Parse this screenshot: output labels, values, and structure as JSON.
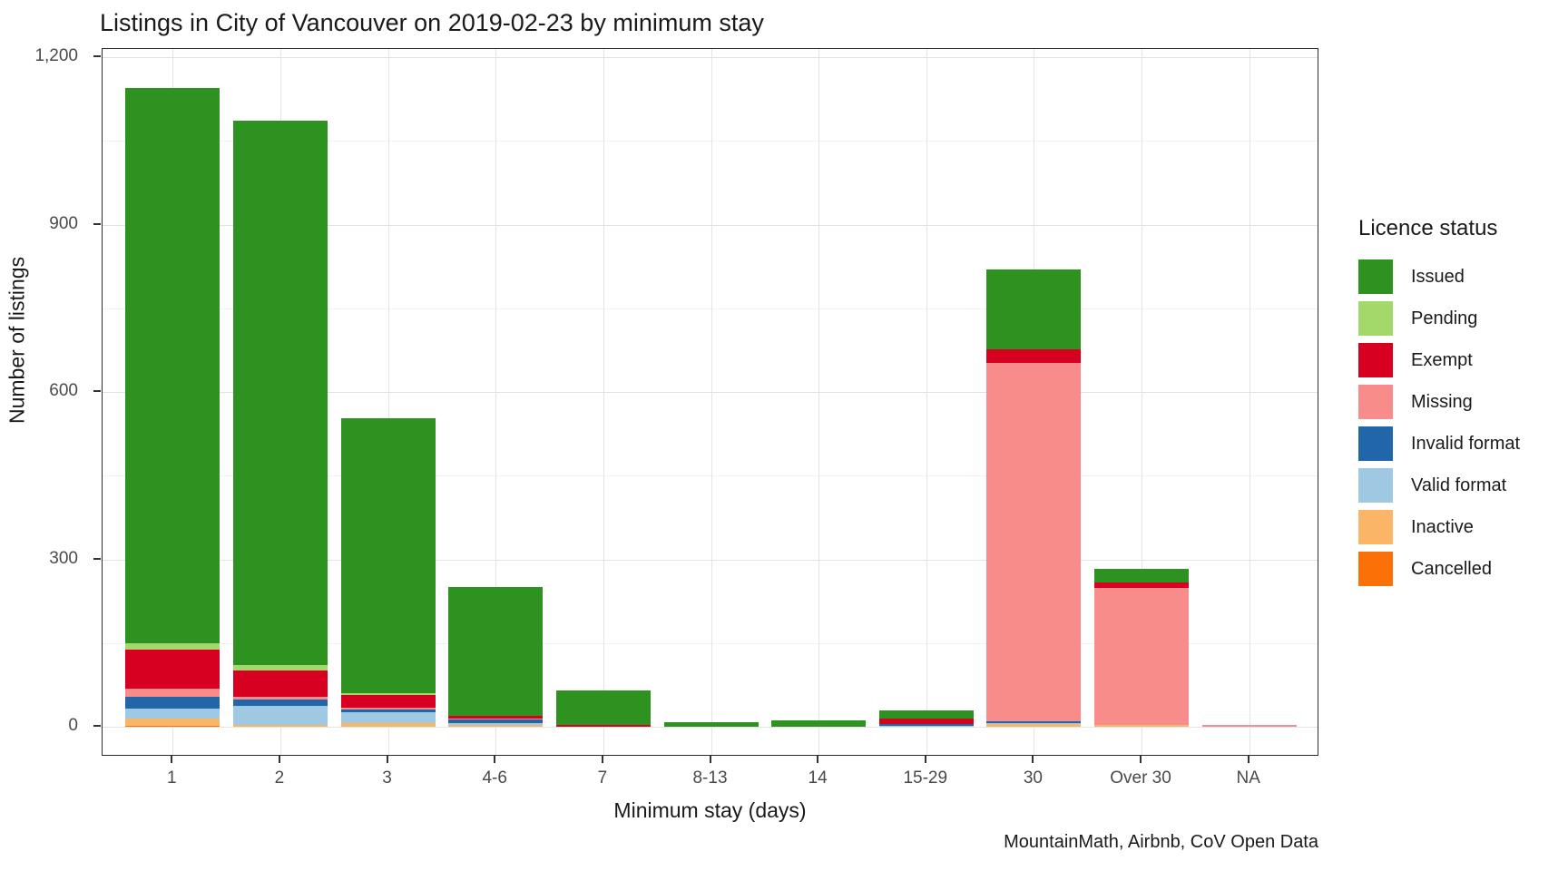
{
  "title": "Listings in City of Vancouver on 2019-02-23 by minimum stay",
  "caption": "MountainMath, Airbnb, CoV Open Data",
  "axes": {
    "x_title": "Minimum stay (days)",
    "y_title": "Number of listings",
    "y_ticks": [
      {
        "label": "0",
        "value": 0
      },
      {
        "label": "300",
        "value": 300
      },
      {
        "label": "600",
        "value": 600
      },
      {
        "label": "900",
        "value": 900
      },
      {
        "label": "1,200",
        "value": 1200
      }
    ],
    "y_minor_ticks": [
      150,
      450,
      750,
      1050
    ]
  },
  "legend": {
    "title": "Licence status",
    "items": [
      {
        "label": "Issued",
        "color": "#2e9220"
      },
      {
        "label": "Pending",
        "color": "#a3d86a"
      },
      {
        "label": "Exempt",
        "color": "#d80021"
      },
      {
        "label": "Missing",
        "color": "#f78c8b"
      },
      {
        "label": "Invalid format",
        "color": "#2066a8"
      },
      {
        "label": "Valid format",
        "color": "#9fc8e2"
      },
      {
        "label": "Inactive",
        "color": "#fab566"
      },
      {
        "label": "Cancelled",
        "color": "#fb7107"
      }
    ]
  },
  "chart_data": {
    "type": "bar",
    "stacked": true,
    "title": "Listings in City of Vancouver on 2019-02-23 by minimum stay",
    "xlabel": "Minimum stay (days)",
    "ylabel": "Number of listings",
    "ylim": [
      0,
      1215
    ],
    "grid": true,
    "legend_position": "right",
    "legend_title": "Licence status",
    "source": "MountainMath, Airbnb, CoV Open Data",
    "categories": [
      "1",
      "2",
      "3",
      "4-6",
      "7",
      "8-13",
      "14",
      "15-29",
      "30",
      "Over 30",
      "NA"
    ],
    "series": [
      {
        "name": "Cancelled",
        "color": "#fb7107",
        "values": [
          2,
          0,
          0,
          0,
          0,
          0,
          0,
          0,
          0,
          0,
          0
        ]
      },
      {
        "name": "Inactive",
        "color": "#fab566",
        "values": [
          13,
          3,
          7,
          3,
          0,
          0,
          0,
          0,
          5,
          3,
          0
        ]
      },
      {
        "name": "Valid format",
        "color": "#9fc8e2",
        "values": [
          18,
          34,
          19,
          4,
          0,
          0,
          0,
          2,
          2,
          0,
          0
        ]
      },
      {
        "name": "Invalid format",
        "color": "#2066a8",
        "values": [
          20,
          12,
          5,
          6,
          0,
          0,
          0,
          3,
          2,
          0,
          0
        ]
      },
      {
        "name": "Missing",
        "color": "#f78c8b",
        "values": [
          15,
          5,
          3,
          2,
          0,
          0,
          0,
          0,
          643,
          246,
          4
        ]
      },
      {
        "name": "Exempt",
        "color": "#d80021",
        "values": [
          70,
          47,
          23,
          5,
          3,
          0,
          0,
          10,
          25,
          10,
          0
        ]
      },
      {
        "name": "Pending",
        "color": "#a3d86a",
        "values": [
          11,
          10,
          3,
          0,
          0,
          0,
          0,
          0,
          0,
          0,
          0
        ]
      },
      {
        "name": "Issued",
        "color": "#2e9220",
        "values": [
          996,
          975,
          493,
          230,
          62,
          8,
          11,
          15,
          143,
          24,
          0
        ]
      }
    ],
    "totals": [
      1145,
      1086,
      553,
      250,
      65,
      8,
      11,
      30,
      820,
      283,
      4
    ]
  }
}
